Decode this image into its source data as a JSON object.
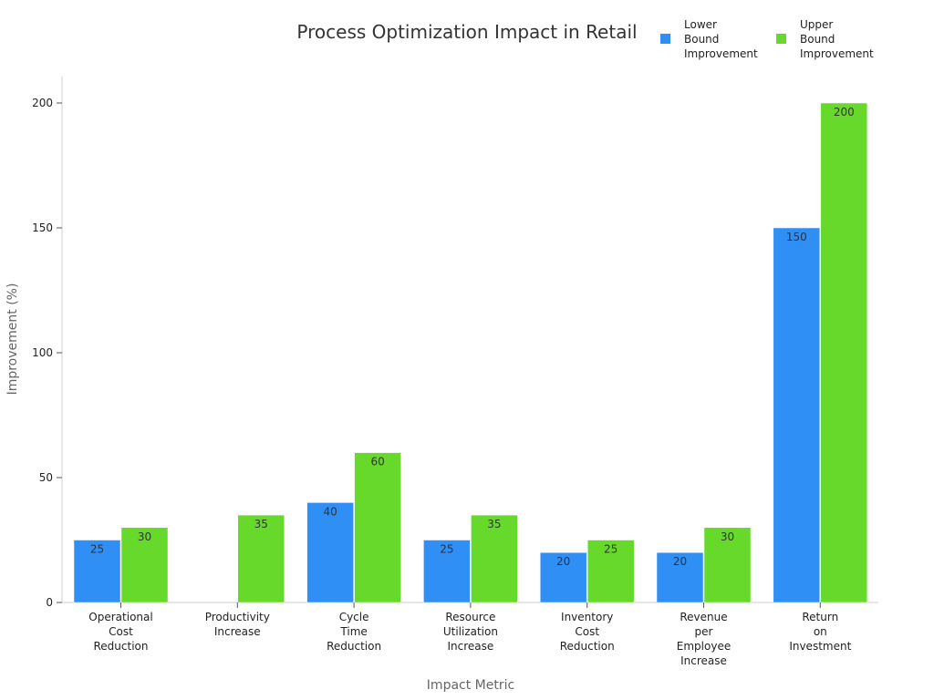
{
  "chart_data": {
    "type": "bar",
    "title": "Process Optimization Impact in Retail",
    "xlabel": "Impact Metric",
    "ylabel": "Improvement (%)",
    "ylim": [
      0,
      210
    ],
    "yticks": [
      0,
      50,
      100,
      150,
      200
    ],
    "categories": [
      [
        "Operational",
        "Cost",
        "Reduction"
      ],
      [
        "Productivity",
        "Increase"
      ],
      [
        "Cycle",
        "Time",
        "Reduction"
      ],
      [
        "Resource",
        "Utilization",
        "Increase"
      ],
      [
        "Inventory",
        "Cost",
        "Reduction"
      ],
      [
        "Revenue",
        "per",
        "Employee",
        "Increase"
      ],
      [
        "Return",
        "on",
        "Investment"
      ]
    ],
    "series": [
      {
        "name": [
          "Lower",
          "Bound",
          "Improvement"
        ],
        "color": "#2f8ff5",
        "values": [
          25,
          null,
          40,
          25,
          20,
          20,
          150
        ]
      },
      {
        "name": [
          "Upper",
          "Bound",
          "Improvement"
        ],
        "color": "#66d92b",
        "values": [
          30,
          35,
          60,
          35,
          25,
          30,
          200
        ]
      }
    ],
    "legend_position": "top-right",
    "grid": false
  }
}
